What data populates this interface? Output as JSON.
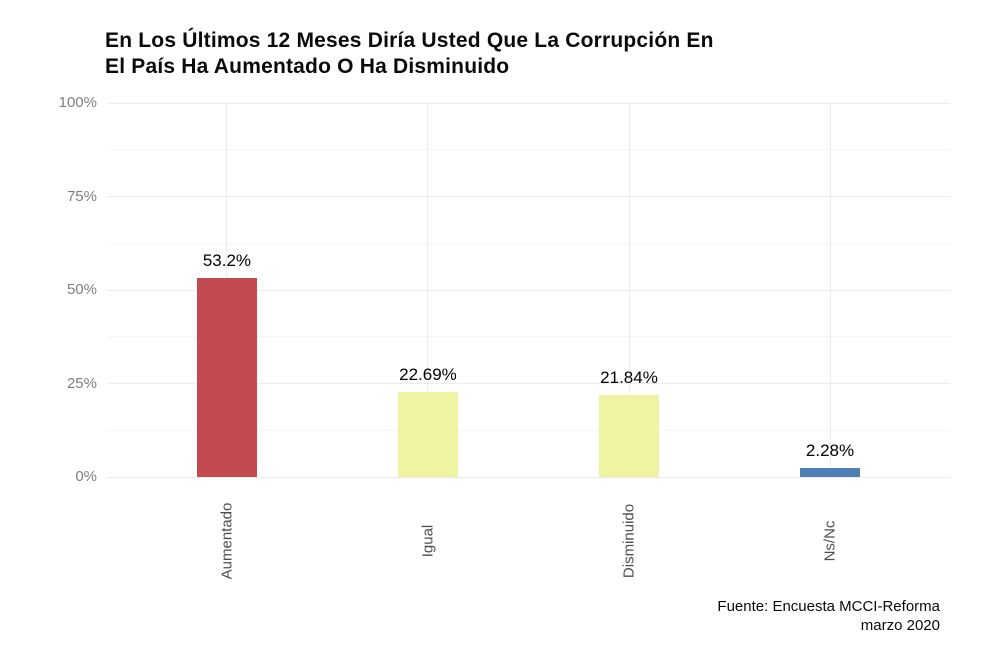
{
  "title": {
    "line1": "En Los Últimos 12 Meses Diría Usted Que La Corrupción En",
    "line2": "El País Ha Aumentado O Ha Disminuido"
  },
  "caption": {
    "line1": "Fuente: Encuesta MCCI-Reforma",
    "line2": "marzo 2020"
  },
  "chart_data": {
    "type": "bar",
    "title": "En Los Últimos 12 Meses Diría Usted Que La Corrupción En El País Ha Aumentado O Ha Disminuido",
    "caption": "Fuente: Encuesta MCCI-Reforma marzo 2020",
    "categories": [
      "Aumentado",
      "Igual",
      "Disminuido",
      "Ns/Nc"
    ],
    "values": [
      53.2,
      22.69,
      21.84,
      2.28
    ],
    "value_labels": [
      "53.2%",
      "22.69%",
      "21.84%",
      "2.28%"
    ],
    "bar_colors": [
      "#c44a52",
      "#f0f4a2",
      "#f0f4a2",
      "#4d81b4"
    ],
    "xlabel": "",
    "ylabel": "",
    "ylim": [
      0,
      100
    ],
    "yticks": [
      0,
      25,
      50,
      75,
      100
    ],
    "ytick_labels": [
      "0%",
      "25%",
      "50%",
      "75%",
      "100%"
    ],
    "minor_yticks": [
      12.5,
      37.5,
      62.5,
      87.5
    ],
    "grid": "on",
    "legend_position": "none",
    "colors": {
      "grid_major": "#ececec",
      "grid_minor": "#f5f5f5",
      "axis_text": "#7f7f7f",
      "category_text": "#4d4d4d",
      "value_label_text": "#000000",
      "background": "#ffffff"
    }
  }
}
